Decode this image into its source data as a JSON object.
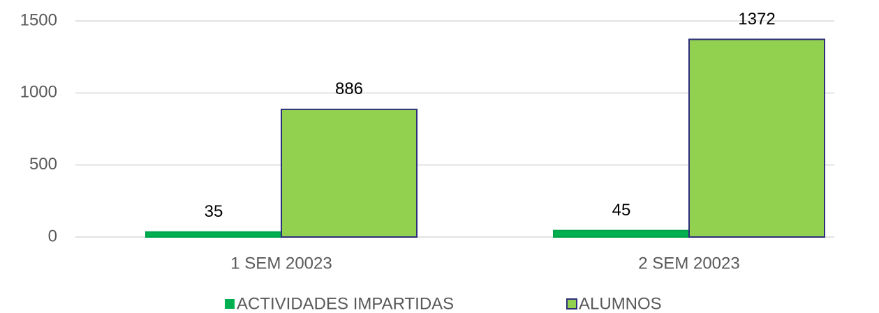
{
  "chart_data": {
    "type": "bar",
    "categories": [
      "1 SEM 20023",
      "2 SEM 20023"
    ],
    "series": [
      {
        "name": "ACTIVIDADES IMPARTIDAS",
        "color": "#00b050",
        "values": [
          35,
          45
        ]
      },
      {
        "name": "ALUMNOS",
        "color": "#92d050",
        "values": [
          886,
          1372
        ]
      }
    ],
    "ylim": [
      0,
      1500
    ],
    "yticks": [
      0,
      500,
      1000,
      1500
    ],
    "grid": true,
    "legend": "bottom"
  }
}
